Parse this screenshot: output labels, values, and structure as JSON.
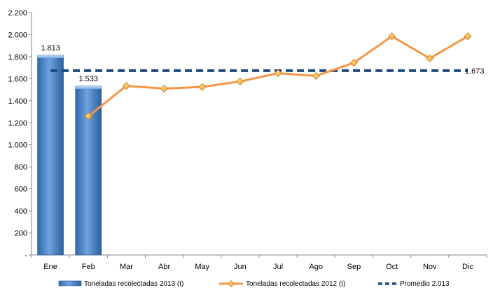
{
  "chart_data": {
    "type": "bar",
    "categories": [
      "Ene",
      "Feb",
      "Mar",
      "Abr",
      "May",
      "Jun",
      "Jul",
      "Ago",
      "Sep",
      "Oct",
      "Nov",
      "Dic"
    ],
    "ylim": [
      0,
      2200
    ],
    "y_ticks": [
      {
        "value": 0,
        "label": "-"
      },
      {
        "value": 200,
        "label": "200"
      },
      {
        "value": 400,
        "label": "400"
      },
      {
        "value": 600,
        "label": "600"
      },
      {
        "value": 800,
        "label": "800"
      },
      {
        "value": 1000,
        "label": "1.000"
      },
      {
        "value": 1200,
        "label": "1.200"
      },
      {
        "value": 1400,
        "label": "1.400"
      },
      {
        "value": 1600,
        "label": "1.600"
      },
      {
        "value": 1800,
        "label": "1.800"
      },
      {
        "value": 2000,
        "label": "2.000"
      },
      {
        "value": 2200,
        "label": "2.200"
      }
    ],
    "grid": false,
    "legend_position": "bottom",
    "series": [
      {
        "name": "Toneladas recolectadas 2013 (t)",
        "type": "bar",
        "color": "#4F81BD",
        "values": [
          1813,
          1533,
          null,
          null,
          null,
          null,
          null,
          null,
          null,
          null,
          null,
          null
        ],
        "labels": [
          "1.813",
          "1.533"
        ]
      },
      {
        "name": "Toneladas recolectadas 2012 (t)",
        "type": "line",
        "color": "#F79646",
        "marker": "diamond",
        "values": [
          null,
          1260,
          1535,
          1510,
          1525,
          1575,
          1650,
          1625,
          1745,
          1985,
          1785,
          1985
        ]
      },
      {
        "name": "Promedio 2.013",
        "type": "line",
        "style": "dashed",
        "color": "#1F497D",
        "values": [
          1673,
          1673,
          1673,
          1673,
          1673,
          1673,
          1673,
          1673,
          1673,
          1673,
          1673,
          1673
        ],
        "end_label": "1.673"
      }
    ]
  }
}
